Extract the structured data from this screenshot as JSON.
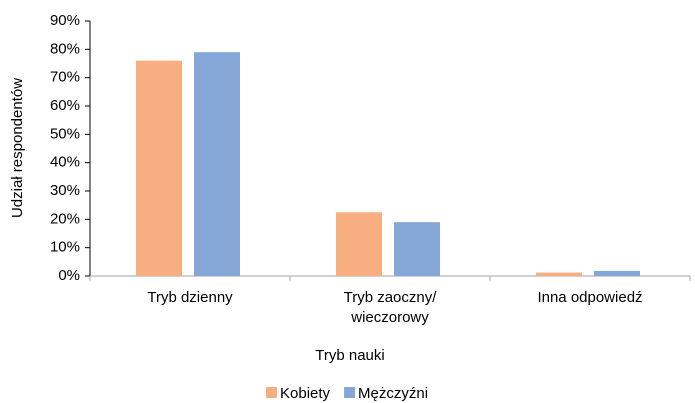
{
  "chart_data": {
    "type": "bar",
    "y_label": "Udział respondentów",
    "x_label": "Tryb nauki",
    "categories": [
      "Tryb dzienny",
      "Tryb zaoczny/ wieczorowy",
      "Inna odpowiedź"
    ],
    "series": [
      {
        "name": "Kobiety",
        "color": "#f7ae80",
        "values": [
          76,
          22.5,
          1.2
        ]
      },
      {
        "name": "Mężczyźni",
        "color": "#84a7d7",
        "values": [
          79,
          19,
          1.8
        ]
      }
    ],
    "ylim": [
      0,
      90
    ],
    "yticks": [
      {
        "value": 0,
        "label": "0%"
      },
      {
        "value": 10,
        "label": "10%"
      },
      {
        "value": 20,
        "label": "20%"
      },
      {
        "value": 30,
        "label": "30%"
      },
      {
        "value": 40,
        "label": "40%"
      },
      {
        "value": 50,
        "label": "50%"
      },
      {
        "value": 60,
        "label": "60%"
      },
      {
        "value": 70,
        "label": "70%"
      },
      {
        "value": 80,
        "label": "80%"
      },
      {
        "value": 90,
        "label": "90%"
      }
    ],
    "grid": false,
    "legend": "bottom"
  }
}
